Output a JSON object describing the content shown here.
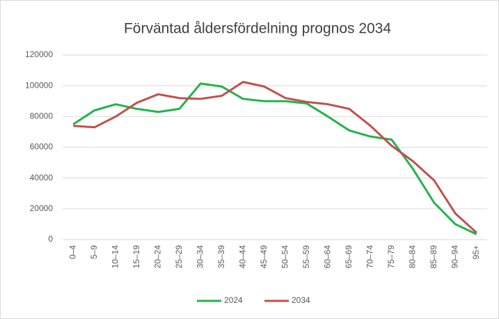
{
  "chart_data": {
    "type": "line",
    "title": "Förväntad åldersfördelning prognos 2034",
    "categories": [
      "0–4",
      "5–9",
      "10–14",
      "15–19",
      "20–24",
      "25–29",
      "30–34",
      "35–39",
      "40–44",
      "45–49",
      "50–54",
      "55–59",
      "60–64",
      "65–69",
      "70–74",
      "75–79",
      "80–84",
      "85–89",
      "90–94",
      "95+"
    ],
    "series": [
      {
        "name": "2024",
        "color": "#22b34c",
        "values": [
          75000,
          84000,
          88000,
          85000,
          83000,
          85000,
          101500,
          99500,
          91500,
          90000,
          90000,
          88500,
          80000,
          71000,
          67000,
          65000,
          46000,
          24000,
          10000,
          3500
        ]
      },
      {
        "name": "2034",
        "color": "#c0504d",
        "values": [
          74000,
          73000,
          80000,
          89000,
          94500,
          92000,
          91500,
          93500,
          102500,
          99500,
          92000,
          89500,
          88000,
          85000,
          74000,
          61000,
          51000,
          38500,
          17000,
          4500
        ]
      }
    ],
    "ylim": [
      0,
      120000
    ],
    "yticks": [
      0,
      20000,
      40000,
      60000,
      80000,
      100000,
      120000
    ],
    "grid": true,
    "legend": "bottom"
  }
}
